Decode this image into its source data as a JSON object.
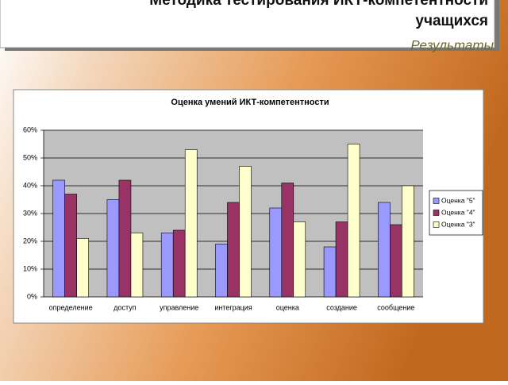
{
  "slide": {
    "title": "Методика тестирования ИКТ-компетентности учащихся",
    "subtitle": "Результаты"
  },
  "chart_data": {
    "type": "bar",
    "title": "Оценка умений ИКТ-компетентности",
    "categories": [
      "определение",
      "доступ",
      "управление",
      "интеграция",
      "оценка",
      "создание",
      "сообщение"
    ],
    "series": [
      {
        "name": "Оценка \"5\"",
        "color": "#9999ff",
        "values": [
          42,
          35,
          23,
          19,
          32,
          18,
          34
        ]
      },
      {
        "name": "Оценка \"4\"",
        "color": "#993366",
        "values": [
          37,
          42,
          24,
          34,
          41,
          27,
          26
        ]
      },
      {
        "name": "Оценка \"3\"",
        "color": "#ffffcc",
        "values": [
          21,
          23,
          53,
          47,
          27,
          55,
          40
        ]
      }
    ],
    "ylim": [
      0,
      60
    ],
    "yticks": [
      {
        "value": 0,
        "label": "0%"
      },
      {
        "value": 10,
        "label": "10%"
      },
      {
        "value": 20,
        "label": "20%"
      },
      {
        "value": 30,
        "label": "30%"
      },
      {
        "value": 40,
        "label": "40%"
      },
      {
        "value": 50,
        "label": "50%"
      },
      {
        "value": 60,
        "label": "60%"
      }
    ],
    "grid": true,
    "legend": "right"
  }
}
